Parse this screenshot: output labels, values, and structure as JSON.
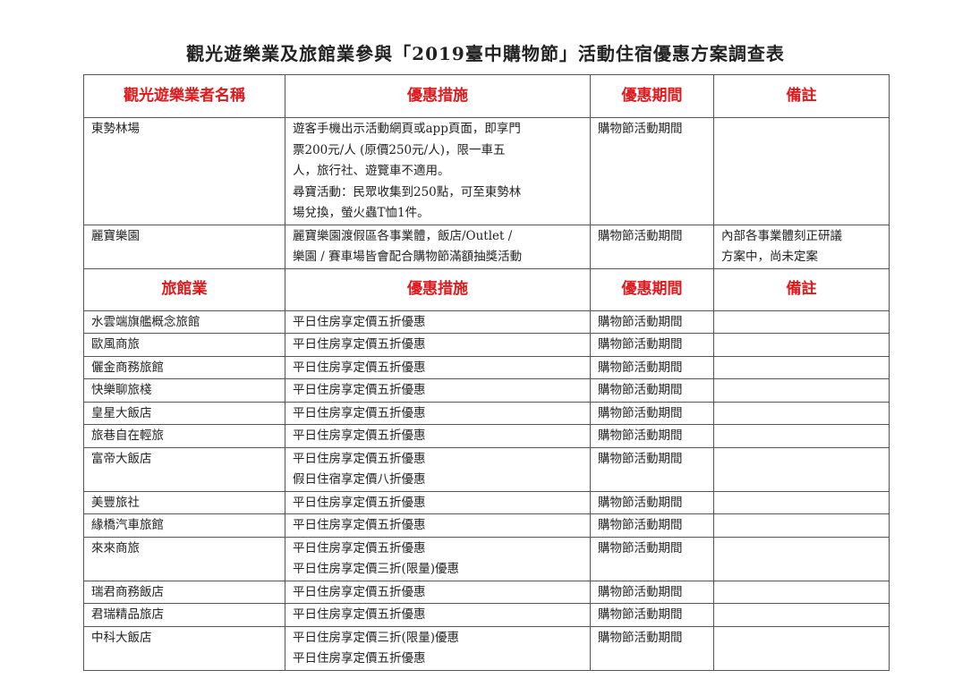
{
  "title": "觀光遊樂業及旅館業參與「2019臺中購物節」活動住宿優惠方案調查表",
  "section1": {
    "headers": [
      "觀光遊樂業者名稱",
      "優惠措施",
      "優惠期間",
      "備註"
    ],
    "rows": [
      {
        "name": "東勢林場",
        "offer": [
          "遊客手機出示活動網頁或app頁面，即享門",
          "票200元/人 (原價250元/人)，限一車五",
          "人，旅行社、遊覽車不適用。",
          "尋寶活動：民眾收集到250點，可至東勢林",
          "場兌換，螢火蟲T恤1件。"
        ],
        "period": "購物節活動期間",
        "note": []
      },
      {
        "name": "麗寶樂園",
        "offer": [
          "麗寶樂園渡假區各事業體，飯店/Outlet /",
          "樂園 / 賽車場皆會配合購物節滿額抽獎活動"
        ],
        "period": "購物節活動期間",
        "note": [
          "內部各事業體刻正研議",
          "方案中，尚未定案"
        ]
      }
    ]
  },
  "section2": {
    "headers": [
      "旅館業",
      "優惠措施",
      "優惠期間",
      "備註"
    ],
    "rows": [
      {
        "name": "水雲端旗艦概念旅館",
        "offer": [
          "平日住房享定價五折優惠"
        ],
        "period": "購物節活動期間"
      },
      {
        "name": "歐風商旅",
        "offer": [
          "平日住房享定價五折優惠"
        ],
        "period": "購物節活動期間"
      },
      {
        "name": "儷金商務旅館",
        "offer": [
          "平日住房享定價五折優惠"
        ],
        "period": "購物節活動期間"
      },
      {
        "name": "快樂聊旅棧",
        "offer": [
          "平日住房享定價五折優惠"
        ],
        "period": "購物節活動期間"
      },
      {
        "name": "皇星大飯店",
        "offer": [
          "平日住房享定價五折優惠"
        ],
        "period": "購物節活動期間"
      },
      {
        "name": "旅巷自在輕旅",
        "offer": [
          "平日住房享定價五折優惠"
        ],
        "period": "購物節活動期間"
      },
      {
        "name": "富帝大飯店",
        "offer": [
          "平日住房享定價五折優惠",
          "假日住宿享定價八折優惠"
        ],
        "period": "購物節活動期間"
      },
      {
        "name": "美豐旅社",
        "offer": [
          "平日住房享定價五折優惠"
        ],
        "period": "購物節活動期間"
      },
      {
        "name": "緣橋汽車旅館",
        "offer": [
          "平日住房享定價五折優惠"
        ],
        "period": "購物節活動期間"
      },
      {
        "name": "來來商旅",
        "offer": [
          "平日住房享定價五折優惠",
          "平日住房享定價三折(限量)優惠"
        ],
        "period": "購物節活動期間"
      },
      {
        "name": "瑞君商務飯店",
        "offer": [
          "平日住房享定價五折優惠"
        ],
        "period": "購物節活動期間"
      },
      {
        "name": "君瑞精品旅店",
        "offer": [
          "平日住房享定價五折優惠"
        ],
        "period": "購物節活動期間"
      },
      {
        "name": "中科大飯店",
        "offer": [
          "平日住房享定價三折(限量)優惠",
          "平日住房享定價五折優惠"
        ],
        "period": "購物節活動期間"
      }
    ]
  }
}
